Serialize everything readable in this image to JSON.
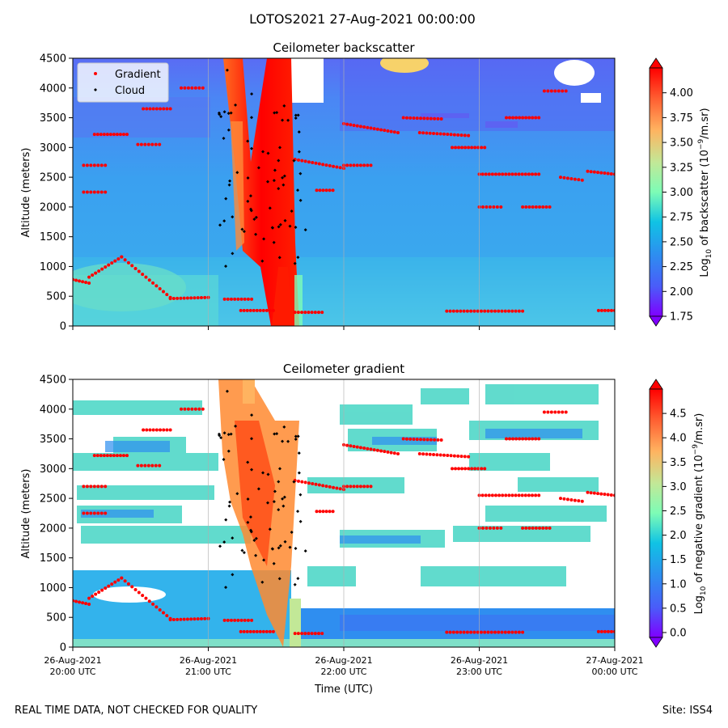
{
  "figure": {
    "suptitle": "LOTOS2021 27-Aug-2021 00:00:00",
    "footer_left": "REAL TIME DATA, NOT CHECKED FOR QUALITY",
    "footer_right": "Site: ISS4",
    "xlabel": "Time (UTC)"
  },
  "chart_data": [
    {
      "type": "heatmap",
      "title": "Ceilometer backscatter",
      "ylabel": "Altitude (meters)",
      "ylim": [
        0,
        4500
      ],
      "yticks": [
        "0",
        "500",
        "1000",
        "1500",
        "2000",
        "2500",
        "3000",
        "3500",
        "4000",
        "4500"
      ],
      "xticks": [],
      "colorbar": {
        "label": "Log10 of backscatter (10^-9/m.sr)",
        "label_main": "Log",
        "label_sub": "10",
        "label_rest": " of backscatter (10",
        "label_sup": "−9",
        "label_end": "/m.sr)",
        "range": [
          1.75,
          4.25
        ],
        "ticks": [
          "1.75",
          "2.00",
          "2.25",
          "2.50",
          "2.75",
          "3.00",
          "3.25",
          "3.50",
          "3.75",
          "4.00"
        ]
      },
      "legend": [
        "Gradient",
        "Cloud"
      ],
      "colors": {
        "gradient": "#ff0000",
        "cloud": "#000000"
      }
    },
    {
      "type": "heatmap",
      "title": "Ceilometer gradient",
      "ylabel": "Altitude (meters)",
      "ylim": [
        0,
        4500
      ],
      "yticks": [
        "0",
        "500",
        "1000",
        "1500",
        "2000",
        "2500",
        "3000",
        "3500",
        "4000",
        "4500"
      ],
      "xticks": [
        [
          "26-Aug-2021",
          "20:00 UTC"
        ],
        [
          "26-Aug-2021",
          "21:00 UTC"
        ],
        [
          "26-Aug-2021",
          "22:00 UTC"
        ],
        [
          "26-Aug-2021",
          "23:00 UTC"
        ],
        [
          "27-Aug-2021",
          "00:00 UTC"
        ]
      ],
      "colorbar": {
        "label": "Log10 of negative gradient (10^-9/m.sr)",
        "label_main": "Log",
        "label_sub": "10",
        "label_rest": " of negative gradient (10",
        "label_sup": "−9",
        "label_end": "/m.sr)",
        "range": [
          -0.1,
          5.0
        ],
        "ticks": [
          "0.0",
          "0.5",
          "1.0",
          "1.5",
          "2.0",
          "2.5",
          "3.0",
          "3.5",
          "4.0",
          "4.5"
        ]
      }
    }
  ],
  "gradient_layers": [
    {
      "t": [
        0.0,
        0.03
      ],
      "alt": [
        780,
        720
      ]
    },
    {
      "t": [
        0.03,
        0.09
      ],
      "alt": [
        820,
        1160
      ]
    },
    {
      "t": [
        0.09,
        0.18
      ],
      "alt": [
        1160,
        480
      ]
    },
    {
      "t": [
        0.18,
        0.25
      ],
      "alt": [
        460,
        480
      ]
    },
    {
      "t": [
        0.02,
        0.06
      ],
      "alt": [
        2700,
        2700
      ]
    },
    {
      "t": [
        0.02,
        0.06
      ],
      "alt": [
        2250,
        2250
      ]
    },
    {
      "t": [
        0.04,
        0.1
      ],
      "alt": [
        3220,
        3220
      ]
    },
    {
      "t": [
        0.12,
        0.16
      ],
      "alt": [
        3050,
        3050
      ]
    },
    {
      "t": [
        0.13,
        0.18
      ],
      "alt": [
        3650,
        3650
      ]
    },
    {
      "t": [
        0.2,
        0.24
      ],
      "alt": [
        4000,
        4000
      ]
    },
    {
      "t": [
        0.28,
        0.33
      ],
      "alt": [
        450,
        450
      ]
    },
    {
      "t": [
        0.31,
        0.37
      ],
      "alt": [
        260,
        260
      ]
    },
    {
      "t": [
        0.41,
        0.46
      ],
      "alt": [
        230,
        230
      ]
    },
    {
      "t": [
        0.41,
        0.5
      ],
      "alt": [
        2800,
        2650
      ]
    },
    {
      "t": [
        0.45,
        0.48
      ],
      "alt": [
        2280,
        2280
      ]
    },
    {
      "t": [
        0.5,
        0.6
      ],
      "alt": [
        3400,
        3250
      ]
    },
    {
      "t": [
        0.5,
        0.55
      ],
      "alt": [
        2700,
        2700
      ]
    },
    {
      "t": [
        0.64,
        0.73
      ],
      "alt": [
        3250,
        3200
      ]
    },
    {
      "t": [
        0.7,
        0.76
      ],
      "alt": [
        3000,
        3000
      ]
    },
    {
      "t": [
        0.61,
        0.68
      ],
      "alt": [
        3500,
        3480
      ]
    },
    {
      "t": [
        0.75,
        0.86
      ],
      "alt": [
        2550,
        2550
      ]
    },
    {
      "t": [
        0.75,
        0.79
      ],
      "alt": [
        2000,
        2000
      ]
    },
    {
      "t": [
        0.69,
        0.83
      ],
      "alt": [
        250,
        250
      ]
    },
    {
      "t": [
        0.9,
        0.94
      ],
      "alt": [
        2500,
        2450
      ]
    },
    {
      "t": [
        0.8,
        0.86
      ],
      "alt": [
        3500,
        3500
      ]
    },
    {
      "t": [
        0.95,
        1.0
      ],
      "alt": [
        2600,
        2550
      ]
    },
    {
      "t": [
        0.97,
        1.0
      ],
      "alt": [
        260,
        260
      ]
    },
    {
      "t": [
        0.83,
        0.88
      ],
      "alt": [
        2000,
        2000
      ]
    },
    {
      "t": [
        0.87,
        0.91
      ],
      "alt": [
        3950,
        3950
      ]
    }
  ]
}
